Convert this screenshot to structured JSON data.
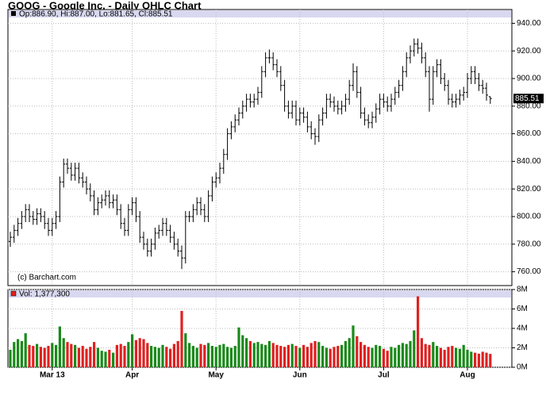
{
  "chart_data": [
    {
      "type": "ohlc",
      "title": "GOOG - Google Inc. - Daily OHLC Chart",
      "legend": "Op:886.90, Hi:887.00, Lo:881.65, Cl:885.51",
      "copyright": "(c) Barchart.com",
      "last_label": "885.51",
      "color": "#000000",
      "categories": [
        null,
        null,
        null,
        null,
        null,
        null,
        null,
        null,
        null,
        null,
        null,
        "Mar 13",
        null,
        null,
        null,
        null,
        null,
        null,
        null,
        null,
        null,
        null,
        null,
        null,
        null,
        null,
        null,
        null,
        null,
        null,
        null,
        null,
        "Apr",
        null,
        null,
        null,
        null,
        null,
        null,
        null,
        null,
        null,
        null,
        null,
        null,
        null,
        null,
        null,
        null,
        null,
        null,
        null,
        null,
        null,
        "May",
        null,
        null,
        null,
        null,
        null,
        null,
        null,
        null,
        null,
        null,
        null,
        null,
        null,
        null,
        null,
        null,
        null,
        null,
        null,
        null,
        null,
        "Jun",
        null,
        null,
        null,
        null,
        null,
        null,
        null,
        null,
        null,
        null,
        null,
        null,
        null,
        null,
        null,
        null,
        null,
        null,
        null,
        null,
        null,
        "Jul",
        null,
        null,
        null,
        null,
        null,
        null,
        null,
        null,
        null,
        null,
        null,
        null,
        null,
        null,
        null,
        null,
        null,
        null,
        null,
        null,
        null,
        "Aug",
        null,
        null,
        null,
        null,
        null,
        null
      ],
      "open": [
        782,
        785,
        790,
        795,
        800,
        805,
        800,
        798,
        802,
        800,
        795,
        790,
        795,
        800,
        825,
        838,
        835,
        830,
        835,
        828,
        825,
        820,
        815,
        805,
        810,
        812,
        815,
        810,
        812,
        805,
        795,
        790,
        805,
        810,
        800,
        785,
        780,
        775,
        780,
        788,
        790,
        795,
        790,
        785,
        780,
        775,
        770,
        800,
        800,
        805,
        810,
        805,
        800,
        815,
        825,
        828,
        835,
        845,
        860,
        865,
        870,
        875,
        880,
        885,
        883,
        885,
        890,
        905,
        915,
        915,
        910,
        905,
        895,
        880,
        875,
        880,
        870,
        875,
        872,
        865,
        860,
        858,
        870,
        875,
        885,
        883,
        880,
        878,
        880,
        885,
        895,
        905,
        890,
        875,
        870,
        868,
        872,
        878,
        885,
        883,
        880,
        885,
        890,
        895,
        905,
        915,
        920,
        925,
        922,
        915,
        905,
        885,
        905,
        910,
        900,
        895,
        885,
        883,
        885,
        888,
        890,
        900,
        905,
        900,
        895,
        893,
        886.9
      ],
      "high": [
        789,
        794,
        799,
        804,
        809,
        809,
        804,
        806,
        806,
        804,
        799,
        799,
        804,
        829,
        842,
        842,
        839,
        839,
        839,
        832,
        829,
        824,
        819,
        814,
        816,
        819,
        819,
        816,
        816,
        809,
        799,
        809,
        814,
        814,
        804,
        789,
        784,
        784,
        792,
        794,
        799,
        799,
        794,
        789,
        784,
        779,
        804,
        804,
        809,
        814,
        814,
        809,
        819,
        829,
        832,
        839,
        849,
        864,
        869,
        874,
        879,
        884,
        889,
        889,
        889,
        894,
        909,
        919,
        921,
        919,
        914,
        909,
        899,
        884,
        884,
        884,
        879,
        879,
        876,
        869,
        864,
        874,
        879,
        889,
        889,
        887,
        884,
        884,
        889,
        899,
        911,
        909,
        894,
        879,
        874,
        876,
        882,
        889,
        889,
        887,
        889,
        894,
        899,
        909,
        919,
        924,
        929,
        929,
        926,
        919,
        909,
        909,
        914,
        914,
        904,
        899,
        889,
        889,
        892,
        894,
        904,
        909,
        909,
        904,
        899,
        897,
        887.0
      ],
      "low": [
        778,
        781,
        786,
        791,
        796,
        796,
        794,
        794,
        796,
        791,
        786,
        786,
        791,
        796,
        821,
        831,
        826,
        826,
        824,
        821,
        816,
        811,
        801,
        801,
        806,
        808,
        806,
        806,
        801,
        791,
        786,
        786,
        801,
        796,
        781,
        776,
        771,
        771,
        776,
        784,
        786,
        786,
        781,
        776,
        771,
        762,
        766,
        796,
        796,
        801,
        801,
        796,
        796,
        811,
        821,
        824,
        831,
        841,
        856,
        861,
        866,
        871,
        876,
        879,
        879,
        881,
        886,
        901,
        911,
        906,
        901,
        891,
        876,
        871,
        871,
        866,
        866,
        868,
        861,
        856,
        852,
        854,
        866,
        871,
        879,
        876,
        874,
        874,
        876,
        881,
        891,
        886,
        871,
        866,
        864,
        864,
        868,
        874,
        879,
        876,
        876,
        881,
        886,
        891,
        901,
        911,
        916,
        918,
        911,
        901,
        876,
        881,
        901,
        896,
        891,
        881,
        879,
        879,
        881,
        884,
        886,
        896,
        896,
        891,
        889,
        884,
        881.65
      ],
      "close": [
        785,
        790,
        795,
        800,
        805,
        800,
        798,
        802,
        800,
        795,
        790,
        795,
        800,
        825,
        838,
        835,
        830,
        835,
        828,
        825,
        820,
        815,
        805,
        810,
        812,
        815,
        810,
        812,
        805,
        795,
        790,
        805,
        810,
        800,
        785,
        780,
        775,
        780,
        788,
        790,
        795,
        790,
        785,
        780,
        775,
        770,
        800,
        800,
        805,
        810,
        805,
        800,
        815,
        825,
        828,
        835,
        845,
        860,
        865,
        870,
        875,
        880,
        885,
        883,
        885,
        890,
        905,
        915,
        915,
        910,
        905,
        895,
        880,
        875,
        880,
        870,
        875,
        872,
        865,
        860,
        858,
        870,
        875,
        885,
        883,
        880,
        878,
        880,
        885,
        895,
        905,
        890,
        875,
        870,
        868,
        872,
        878,
        885,
        883,
        880,
        885,
        890,
        895,
        905,
        915,
        920,
        925,
        922,
        915,
        905,
        885,
        905,
        910,
        900,
        895,
        885,
        883,
        885,
        888,
        890,
        900,
        905,
        900,
        895,
        893,
        888,
        885.51
      ],
      "ylim": [
        750,
        950
      ],
      "yticks": [
        {
          "value": 760,
          "label": "760.00"
        },
        {
          "value": 780,
          "label": "780.00"
        },
        {
          "value": 800,
          "label": "800.00"
        },
        {
          "value": 820,
          "label": "820.00"
        },
        {
          "value": 840,
          "label": "840.00"
        },
        {
          "value": 860,
          "label": "860.00"
        },
        {
          "value": 880,
          "label": "880.00"
        },
        {
          "value": 900,
          "label": "900.00"
        },
        {
          "value": 920,
          "label": "920.00"
        },
        {
          "value": 940,
          "label": "940.00"
        }
      ],
      "grid": true
    },
    {
      "type": "volume",
      "legend": "Vol: 1,377,300",
      "up_color": "#1a8a1a",
      "down_color": "#e02020",
      "values": [
        1800000,
        2600000,
        2900000,
        2700000,
        3500000,
        2300000,
        2200000,
        2400000,
        2100000,
        2000000,
        2200000,
        2500000,
        2300000,
        4200000,
        3000000,
        2600000,
        2400000,
        2300000,
        2000000,
        2200000,
        1900000,
        2100000,
        2600000,
        2000000,
        1700000,
        1600000,
        1800000,
        1500000,
        2300000,
        2400000,
        2200000,
        2600000,
        3400000,
        2800000,
        3000000,
        2900000,
        2500000,
        2200000,
        2100000,
        2000000,
        2300000,
        2100000,
        1900000,
        2400000,
        2700000,
        5800000,
        3500000,
        2500000,
        2200000,
        2000000,
        2400000,
        2300000,
        2500000,
        2200000,
        2100000,
        2300000,
        2400000,
        2100000,
        2000000,
        2200000,
        4100000,
        3300000,
        3000000,
        2700000,
        2500000,
        2600000,
        2400000,
        2300000,
        2700000,
        2500000,
        2300000,
        2200000,
        2100000,
        2300000,
        2400000,
        2200000,
        2000000,
        2300000,
        2100000,
        2500000,
        2700000,
        2600000,
        2200000,
        2000000,
        1900000,
        2100000,
        2200000,
        2300000,
        2700000,
        3000000,
        4300000,
        3200000,
        2600000,
        2300000,
        2100000,
        2000000,
        2300000,
        2200000,
        1900000,
        1700000,
        2100000,
        2000000,
        2300000,
        2500000,
        2400000,
        2700000,
        3800000,
        7300000,
        3000000,
        2400000,
        2300000,
        2600000,
        2200000,
        2000000,
        1800000,
        2100000,
        2200000,
        2000000,
        1900000,
        2300000,
        1800000,
        1600000,
        1500000,
        1400000,
        1600000,
        1500000,
        1377300
      ],
      "ylim": [
        0,
        8000000
      ],
      "yticks": [
        {
          "value": 0,
          "label": "0M"
        },
        {
          "value": 2000000,
          "label": "2M"
        },
        {
          "value": 4000000,
          "label": "4M"
        },
        {
          "value": 6000000,
          "label": "6M"
        },
        {
          "value": 8000000,
          "label": "8M"
        }
      ],
      "grid": true
    }
  ]
}
